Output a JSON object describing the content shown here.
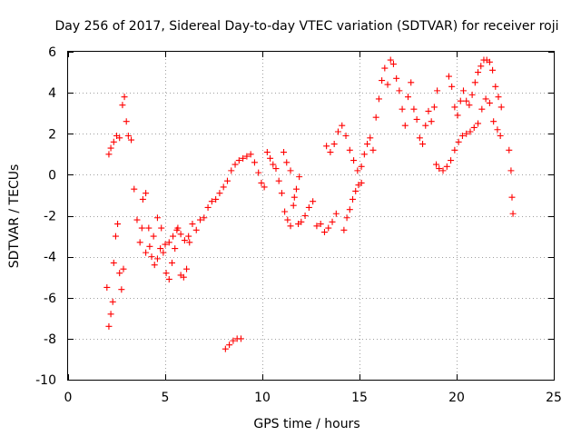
{
  "chart_data": {
    "type": "scatter",
    "title": "Day 256 of 2017, Sidereal Day-to-day VTEC variation (SDTVAR) for receiver roji",
    "xlabel": "GPS time / hours",
    "ylabel": "SDTVAR / TECUs",
    "xlim": [
      0,
      25
    ],
    "ylim": [
      -10,
      6
    ],
    "xticks": [
      0,
      5,
      10,
      15,
      20,
      25
    ],
    "xtick_labels": [
      "0",
      "5",
      "10",
      "15",
      "20",
      "25"
    ],
    "yticks": [
      -10,
      -8,
      -6,
      -4,
      -2,
      0,
      2,
      4,
      6
    ],
    "ytick_labels": [
      "-10",
      "-8",
      "-6",
      "-4",
      "-2",
      "0",
      "2",
      "4",
      "6"
    ],
    "grid": true,
    "marker": "plus",
    "series": [
      {
        "name": "SDTVAR",
        "color": "#ff0000",
        "points": [
          [
            2.0,
            -5.5
          ],
          [
            2.1,
            -7.4
          ],
          [
            2.2,
            -6.8
          ],
          [
            2.3,
            -6.2
          ],
          [
            2.35,
            -4.3
          ],
          [
            2.45,
            -3.0
          ],
          [
            2.55,
            -2.4
          ],
          [
            2.65,
            -4.8
          ],
          [
            2.75,
            -5.6
          ],
          [
            2.85,
            -4.6
          ],
          [
            2.1,
            1.0
          ],
          [
            2.2,
            1.3
          ],
          [
            2.35,
            1.6
          ],
          [
            2.5,
            1.9
          ],
          [
            2.65,
            1.8
          ],
          [
            2.8,
            3.4
          ],
          [
            2.9,
            3.8
          ],
          [
            3.0,
            2.6
          ],
          [
            3.1,
            1.9
          ],
          [
            3.25,
            1.7
          ],
          [
            3.4,
            -0.7
          ],
          [
            3.55,
            -2.2
          ],
          [
            3.7,
            -3.3
          ],
          [
            3.85,
            -1.2
          ],
          [
            4.0,
            -0.9
          ],
          [
            4.15,
            -2.6
          ],
          [
            4.3,
            -4.0
          ],
          [
            4.45,
            -4.4
          ],
          [
            4.6,
            -4.1
          ],
          [
            4.75,
            -3.6
          ],
          [
            4.9,
            -3.8
          ],
          [
            5.05,
            -4.8
          ],
          [
            5.2,
            -5.1
          ],
          [
            5.35,
            -4.3
          ],
          [
            5.5,
            -3.6
          ],
          [
            5.65,
            -2.6
          ],
          [
            5.8,
            -4.9
          ],
          [
            5.95,
            -5.0
          ],
          [
            6.1,
            -4.6
          ],
          [
            6.25,
            -3.3
          ],
          [
            3.8,
            -2.6
          ],
          [
            4.0,
            -3.8
          ],
          [
            4.2,
            -3.5
          ],
          [
            4.4,
            -3.0
          ],
          [
            4.6,
            -2.1
          ],
          [
            4.8,
            -2.6
          ],
          [
            5.0,
            -3.4
          ],
          [
            5.2,
            -3.3
          ],
          [
            5.4,
            -3.0
          ],
          [
            5.6,
            -2.7
          ],
          [
            5.8,
            -2.9
          ],
          [
            6.0,
            -3.2
          ],
          [
            6.2,
            -3.0
          ],
          [
            6.4,
            -2.4
          ],
          [
            6.6,
            -2.7
          ],
          [
            6.8,
            -2.2
          ],
          [
            7.0,
            -2.1
          ],
          [
            7.2,
            -1.6
          ],
          [
            7.4,
            -1.3
          ],
          [
            7.6,
            -1.2
          ],
          [
            7.8,
            -0.9
          ],
          [
            8.0,
            -0.6
          ],
          [
            8.2,
            -0.3
          ],
          [
            8.4,
            0.2
          ],
          [
            8.6,
            0.5
          ],
          [
            8.8,
            0.7
          ],
          [
            9.0,
            0.8
          ],
          [
            9.2,
            0.9
          ],
          [
            9.4,
            1.0
          ],
          [
            9.6,
            0.6
          ],
          [
            9.8,
            0.1
          ],
          [
            9.95,
            -0.4
          ],
          [
            10.1,
            -0.6
          ],
          [
            10.25,
            1.1
          ],
          [
            10.4,
            0.8
          ],
          [
            10.55,
            0.5
          ],
          [
            10.7,
            0.3
          ],
          [
            10.85,
            -0.3
          ],
          [
            11.0,
            -0.9
          ],
          [
            11.15,
            -1.8
          ],
          [
            11.3,
            -2.2
          ],
          [
            11.45,
            -2.5
          ],
          [
            11.6,
            -1.5
          ],
          [
            11.75,
            -0.7
          ],
          [
            11.9,
            -0.1
          ],
          [
            11.1,
            1.1
          ],
          [
            11.25,
            0.6
          ],
          [
            11.45,
            0.2
          ],
          [
            11.65,
            -1.1
          ],
          [
            11.85,
            -2.4
          ],
          [
            8.1,
            -8.5
          ],
          [
            8.3,
            -8.3
          ],
          [
            8.5,
            -8.1
          ],
          [
            8.7,
            -8.0
          ],
          [
            8.9,
            -8.0
          ],
          [
            12.0,
            -2.3
          ],
          [
            12.2,
            -2.0
          ],
          [
            12.4,
            -1.6
          ],
          [
            12.6,
            -1.3
          ],
          [
            12.8,
            -2.5
          ],
          [
            13.0,
            -2.4
          ],
          [
            13.2,
            -2.8
          ],
          [
            13.4,
            -2.6
          ],
          [
            13.6,
            -2.3
          ],
          [
            13.8,
            -1.9
          ],
          [
            13.3,
            1.4
          ],
          [
            13.5,
            1.1
          ],
          [
            13.7,
            1.5
          ],
          [
            13.9,
            2.1
          ],
          [
            14.1,
            2.4
          ],
          [
            14.3,
            1.9
          ],
          [
            14.5,
            1.2
          ],
          [
            14.7,
            0.7
          ],
          [
            14.9,
            0.2
          ],
          [
            15.1,
            -0.4
          ],
          [
            14.2,
            -2.7
          ],
          [
            14.35,
            -2.1
          ],
          [
            14.5,
            -1.7
          ],
          [
            14.65,
            -1.2
          ],
          [
            14.8,
            -0.8
          ],
          [
            14.95,
            -0.5
          ],
          [
            15.1,
            0.4
          ],
          [
            15.25,
            1.0
          ],
          [
            15.4,
            1.5
          ],
          [
            15.55,
            1.8
          ],
          [
            15.7,
            1.2
          ],
          [
            15.85,
            2.8
          ],
          [
            16.0,
            3.7
          ],
          [
            16.15,
            4.6
          ],
          [
            16.3,
            5.2
          ],
          [
            16.45,
            4.4
          ],
          [
            16.6,
            5.6
          ],
          [
            16.75,
            5.4
          ],
          [
            16.9,
            4.7
          ],
          [
            17.05,
            4.1
          ],
          [
            17.2,
            3.2
          ],
          [
            17.35,
            2.4
          ],
          [
            17.5,
            3.8
          ],
          [
            17.65,
            4.5
          ],
          [
            17.8,
            3.2
          ],
          [
            17.95,
            2.7
          ],
          [
            18.1,
            1.8
          ],
          [
            18.25,
            1.5
          ],
          [
            18.4,
            2.4
          ],
          [
            18.55,
            3.1
          ],
          [
            18.7,
            2.6
          ],
          [
            18.85,
            3.3
          ],
          [
            19.0,
            4.1
          ],
          [
            18.95,
            0.5
          ],
          [
            19.1,
            0.3
          ],
          [
            19.3,
            0.2
          ],
          [
            19.5,
            0.4
          ],
          [
            19.7,
            0.7
          ],
          [
            19.9,
            1.2
          ],
          [
            20.1,
            1.6
          ],
          [
            20.3,
            1.9
          ],
          [
            20.5,
            2.0
          ],
          [
            20.7,
            2.1
          ],
          [
            20.9,
            2.3
          ],
          [
            21.1,
            2.5
          ],
          [
            21.3,
            3.2
          ],
          [
            21.5,
            3.7
          ],
          [
            21.7,
            3.5
          ],
          [
            21.9,
            2.6
          ],
          [
            22.1,
            2.2
          ],
          [
            22.25,
            1.9
          ],
          [
            19.6,
            4.8
          ],
          [
            19.75,
            4.3
          ],
          [
            19.9,
            3.3
          ],
          [
            20.05,
            2.9
          ],
          [
            20.2,
            3.6
          ],
          [
            20.35,
            4.1
          ],
          [
            20.5,
            3.6
          ],
          [
            20.65,
            3.4
          ],
          [
            20.8,
            3.9
          ],
          [
            20.95,
            4.5
          ],
          [
            21.1,
            5.0
          ],
          [
            21.25,
            5.3
          ],
          [
            21.4,
            5.6
          ],
          [
            21.55,
            5.6
          ],
          [
            21.7,
            5.5
          ],
          [
            21.85,
            5.1
          ],
          [
            22.0,
            4.3
          ],
          [
            22.15,
            3.8
          ],
          [
            22.3,
            3.3
          ],
          [
            22.7,
            1.2
          ],
          [
            22.8,
            0.2
          ],
          [
            22.85,
            -1.1
          ],
          [
            22.9,
            -1.9
          ]
        ]
      }
    ]
  }
}
